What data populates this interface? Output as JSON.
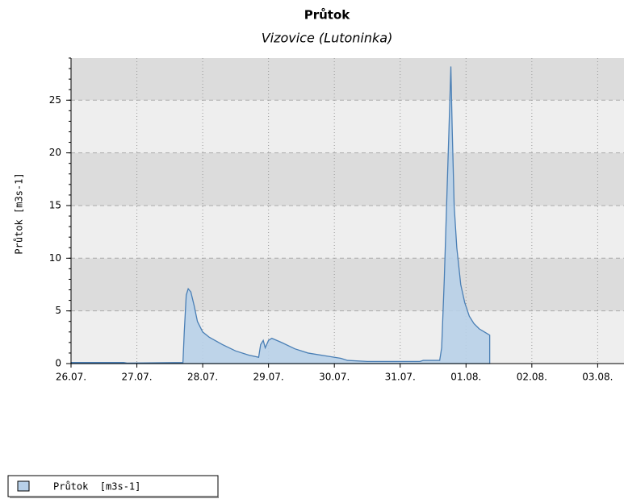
{
  "chart_data": {
    "type": "area",
    "title": "Průtok",
    "subtitle": "Vizovice (Lutoninka)",
    "y_label": "Průtok [m3s-1]",
    "x": [
      0,
      0.8,
      0.85,
      1.7,
      1.72,
      1.75,
      1.78,
      1.82,
      1.87,
      1.92,
      2.0,
      2.1,
      2.3,
      2.5,
      2.7,
      2.85,
      2.88,
      2.92,
      2.95,
      3.0,
      3.05,
      3.2,
      3.4,
      3.6,
      3.9,
      4.1,
      4.2,
      4.5,
      5.0,
      5.3,
      5.35,
      5.6,
      5.63,
      5.67,
      5.71,
      5.74,
      5.77,
      5.79,
      5.82,
      5.86,
      5.92,
      5.98,
      6.05,
      6.12,
      6.2,
      6.28,
      6.36
    ],
    "series": [
      {
        "name": "Průtok  [m3s-1]",
        "color": "#4a7fb5",
        "fill": "#b8d0e8",
        "values": [
          0.1,
          0.1,
          0.05,
          0.1,
          3,
          6.5,
          7.1,
          6.8,
          5.5,
          4,
          3,
          2.5,
          1.8,
          1.2,
          0.8,
          0.6,
          1.8,
          2.2,
          1.5,
          2.2,
          2.4,
          2.0,
          1.4,
          1.0,
          0.7,
          0.5,
          0.3,
          0.2,
          0.2,
          0.2,
          0.3,
          0.3,
          1.5,
          8,
          16,
          22,
          28.2,
          22.3,
          15,
          11,
          7.5,
          5.8,
          4.5,
          3.8,
          3.3,
          3.0,
          2.7
        ]
      }
    ],
    "xlim": [
      0,
      8.4
    ],
    "xticks": [
      {
        "value": 0,
        "label": "26.07."
      },
      {
        "value": 1,
        "label": "27.07."
      },
      {
        "value": 2,
        "label": "28.07."
      },
      {
        "value": 3,
        "label": "29.07."
      },
      {
        "value": 4,
        "label": "30.07."
      },
      {
        "value": 5,
        "label": "31.07."
      },
      {
        "value": 6,
        "label": "01.08."
      },
      {
        "value": 7,
        "label": "02.08."
      },
      {
        "value": 8,
        "label": "03.08."
      }
    ],
    "ylim": [
      0,
      29
    ],
    "yticks": [
      0,
      5,
      10,
      15,
      20,
      25
    ],
    "grid": true,
    "legend": "bottom-left"
  }
}
